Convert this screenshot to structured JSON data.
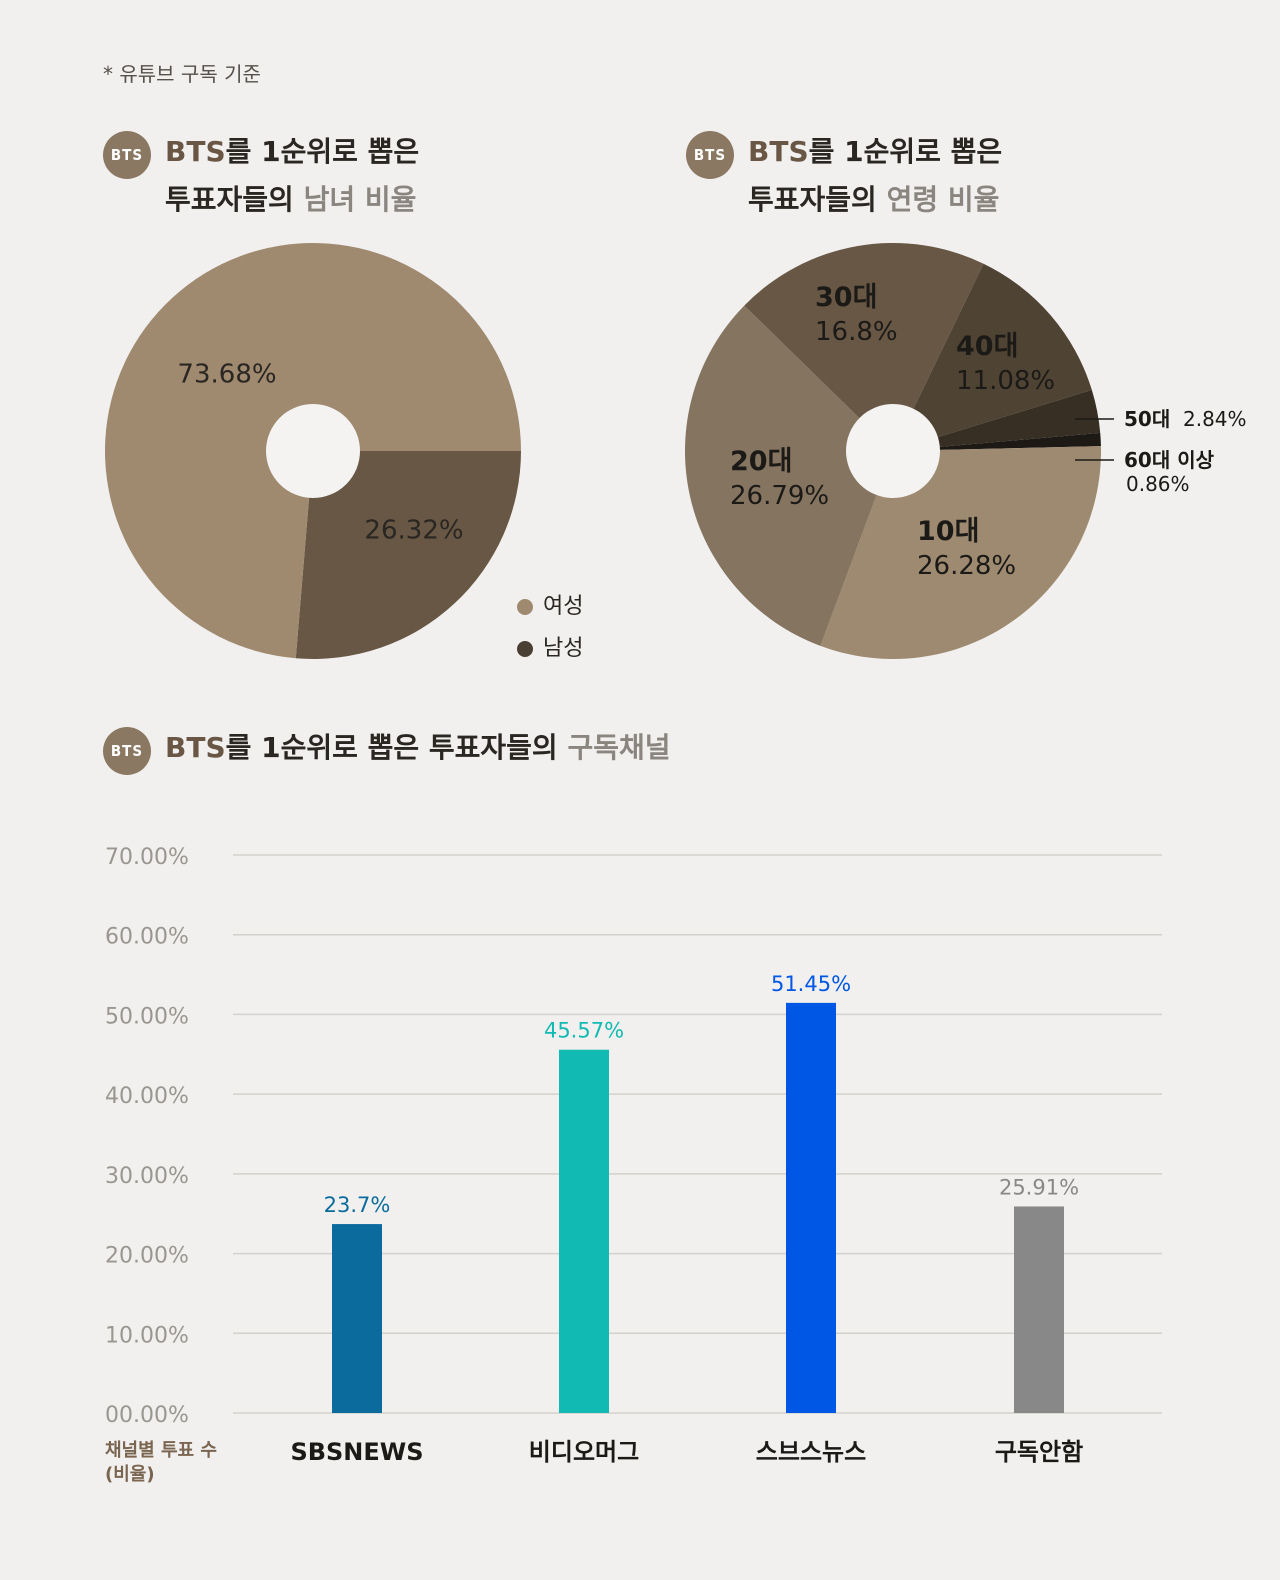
{
  "note": "* 유튜브 구독 기준",
  "badge_label": "BTS",
  "gender_title": {
    "part1": "BTS",
    "part2": "를 1순위로 뽑은",
    "part3": "투표자들의 ",
    "part4": "남녀 비율"
  },
  "age_title": {
    "part1": "BTS",
    "part2": "를 1순위로 뽑은",
    "part3": "투표자들의 ",
    "part4": "연령 비율"
  },
  "channel_title": {
    "part1": "BTS",
    "part2": "를 1순위로 뽑은 투표자들의 ",
    "part3": "구독채널"
  },
  "colors": {
    "female": "#9f8a70",
    "male": "#675744",
    "age10": "#9e8a70",
    "age20": "#857460",
    "age30": "#675744",
    "age40": "#4f4334",
    "age50": "#372e24",
    "age60": "#1d1915",
    "sbs": "#0a6b9c",
    "vidio": "#11bab3",
    "sbsnews2": "#0057e6",
    "none": "#888888"
  },
  "chart_data": [
    {
      "type": "pie",
      "labels": [
        "여성",
        "남성"
      ],
      "values": [
        73.68,
        26.32
      ],
      "value_labels": [
        "73.68%",
        "26.32%"
      ],
      "legend": [
        "여성",
        "남성"
      ]
    },
    {
      "type": "pie",
      "labels": [
        "10대",
        "20대",
        "30대",
        "40대",
        "50대",
        "60대 이상"
      ],
      "values": [
        26.28,
        26.79,
        16.8,
        11.08,
        2.84,
        0.86
      ],
      "value_labels": [
        "26.28%",
        "26.79%",
        "16.8%",
        "11.08%",
        "2.84%",
        "0.86%"
      ]
    },
    {
      "type": "bar",
      "categories": [
        "SBSNEWS",
        "비디오머그",
        "스브스뉴스",
        "구독안함"
      ],
      "values": [
        23.7,
        45.57,
        51.45,
        25.91
      ],
      "value_labels": [
        "23.7%",
        "45.57%",
        "51.45%",
        "25.91%"
      ],
      "ylim": [
        0,
        70
      ],
      "yticks": [
        "00.00%",
        "10.00%",
        "20.00%",
        "30.00%",
        "40.00%",
        "50.00%",
        "60.00%",
        "70.00%"
      ],
      "xlabel": "채널별 투표 수 (비율)",
      "xlabel_lines": [
        "채널별 투표 수",
        "(비율)"
      ],
      "grid": true
    }
  ]
}
